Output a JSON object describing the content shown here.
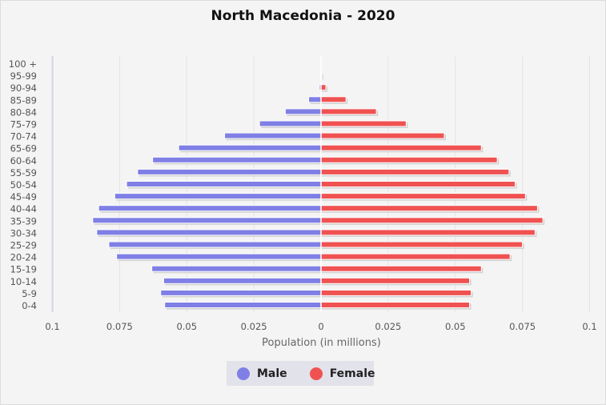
{
  "chart_data": {
    "type": "bar",
    "orientation": "horizontal-pyramid",
    "title": "North Macedonia - 2020",
    "xlabel": "Population (in millions)",
    "xlim": [
      -0.1,
      0.1
    ],
    "x_tick_labels": [
      "0.1",
      "0.075",
      "0.05",
      "0.025",
      "0",
      "0.025",
      "0.05",
      "0.075",
      "0.1"
    ],
    "grid": true,
    "legend_placement": "bottom",
    "categories": [
      "0-4",
      "5-9",
      "10-14",
      "15-19",
      "20-24",
      "25-29",
      "30-34",
      "35-39",
      "40-44",
      "45-49",
      "50-54",
      "55-59",
      "60-64",
      "65-69",
      "70-74",
      "75-79",
      "80-84",
      "85-89",
      "90-94",
      "95-99",
      "100 +"
    ],
    "series": [
      {
        "name": "Male",
        "color": "#7f7fe6",
        "values": [
          0.0582,
          0.0597,
          0.0586,
          0.063,
          0.0761,
          0.079,
          0.0835,
          0.085,
          0.0828,
          0.0768,
          0.0724,
          0.0683,
          0.0627,
          0.053,
          0.0359,
          0.0229,
          0.0133,
          0.0046,
          0.0006,
          0.0001,
          0
        ]
      },
      {
        "name": "Female",
        "color": "#f05252",
        "values": [
          0.0553,
          0.0559,
          0.0553,
          0.0597,
          0.0704,
          0.075,
          0.0797,
          0.0826,
          0.0806,
          0.0761,
          0.0723,
          0.07,
          0.0656,
          0.0597,
          0.0459,
          0.0317,
          0.0206,
          0.0093,
          0.0018,
          0.0002,
          0
        ]
      }
    ]
  }
}
